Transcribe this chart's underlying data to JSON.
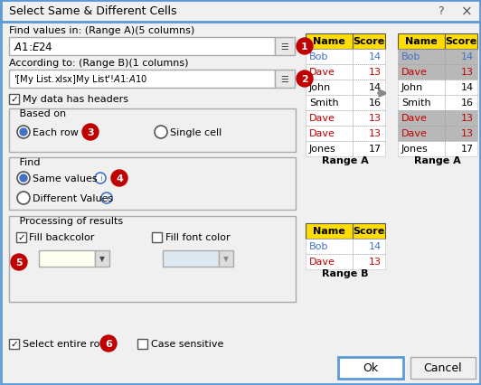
{
  "title": "Select Same & Different Cells",
  "bg_color": "#f0f0f0",
  "dialog_border": "#4472c4",
  "label1": "Find values in: (Range A)(5 columns)",
  "input1": "$A$1:$E$24",
  "label2": "According to: (Range B)(1 columns)",
  "input2": "'[My List.xlsx]My List'!$A$1:$A$10",
  "checkbox1": "My data has headers",
  "based_on_label": "Based on",
  "radio1": "Each row",
  "radio2": "Single cell",
  "find_label": "Find",
  "radio3": "Same values",
  "radio4": "Different Values",
  "proc_label": "Processing of results",
  "checkbox2": "Fill backcolor",
  "checkbox3": "Fill font color",
  "footer_cb1": "Select entire rows",
  "footer_cb2": "Case sensitive",
  "ok_btn": "Ok",
  "cancel_btn": "Cancel",
  "numbers": [
    "1",
    "2",
    "3",
    "4",
    "5",
    "6"
  ],
  "number_color": "#c00000",
  "yellow": "#ffdd00",
  "gray_highlight": "#b8b8b8",
  "blue_text": "#4472c4",
  "red_text": "#c00000",
  "black_text": "#000000",
  "range_a_left": {
    "headers": [
      "Name",
      "Score"
    ],
    "rows": [
      {
        "name": "Bob",
        "score": "14",
        "name_color": "#4472c4",
        "score_color": "#4472c4",
        "bg": "#ffffff"
      },
      {
        "name": "Dave",
        "score": "13",
        "name_color": "#c00000",
        "score_color": "#c00000",
        "bg": "#ffffff"
      },
      {
        "name": "John",
        "score": "14",
        "name_color": "#000000",
        "score_color": "#000000",
        "bg": "#ffffff"
      },
      {
        "name": "Smith",
        "score": "16",
        "name_color": "#000000",
        "score_color": "#000000",
        "bg": "#ffffff"
      },
      {
        "name": "Dave",
        "score": "13",
        "name_color": "#c00000",
        "score_color": "#c00000",
        "bg": "#ffffff"
      },
      {
        "name": "Dave",
        "score": "13",
        "name_color": "#c00000",
        "score_color": "#c00000",
        "bg": "#ffffff"
      },
      {
        "name": "Jones",
        "score": "17",
        "name_color": "#000000",
        "score_color": "#000000",
        "bg": "#ffffff"
      }
    ]
  },
  "range_a_right": {
    "headers": [
      "Name",
      "Score"
    ],
    "rows": [
      {
        "name": "Bob",
        "score": "14",
        "name_color": "#4472c4",
        "score_color": "#4472c4",
        "bg": "#b8b8b8"
      },
      {
        "name": "Dave",
        "score": "13",
        "name_color": "#c00000",
        "score_color": "#c00000",
        "bg": "#b8b8b8"
      },
      {
        "name": "John",
        "score": "14",
        "name_color": "#000000",
        "score_color": "#000000",
        "bg": "#ffffff"
      },
      {
        "name": "Smith",
        "score": "16",
        "name_color": "#000000",
        "score_color": "#000000",
        "bg": "#ffffff"
      },
      {
        "name": "Dave",
        "score": "13",
        "name_color": "#c00000",
        "score_color": "#c00000",
        "bg": "#b8b8b8"
      },
      {
        "name": "Dave",
        "score": "13",
        "name_color": "#c00000",
        "score_color": "#c00000",
        "bg": "#b8b8b8"
      },
      {
        "name": "Jones",
        "score": "17",
        "name_color": "#000000",
        "score_color": "#000000",
        "bg": "#ffffff"
      }
    ]
  },
  "range_b": {
    "headers": [
      "Name",
      "Score"
    ],
    "rows": [
      {
        "name": "Bob",
        "score": "14",
        "name_color": "#4472c4",
        "score_color": "#4472c4",
        "bg": "#ffffff"
      },
      {
        "name": "Dave",
        "score": "13",
        "name_color": "#c00000",
        "score_color": "#c00000",
        "bg": "#ffffff"
      }
    ]
  }
}
